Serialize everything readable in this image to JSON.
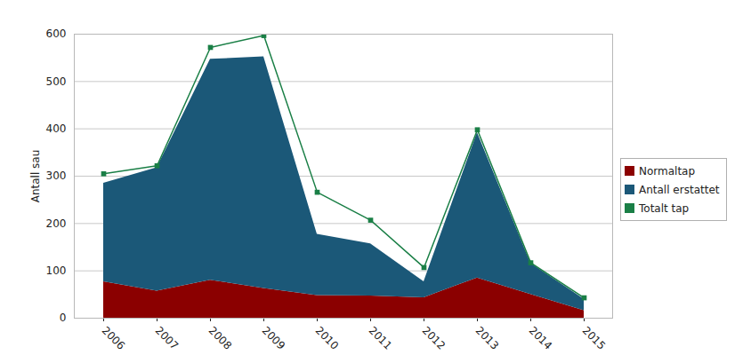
{
  "chart_data": {
    "type": "area",
    "stacked": true,
    "categories": [
      "2006",
      "2007",
      "2008",
      "2009",
      "2010",
      "2011",
      "2012",
      "2013",
      "2014",
      "2015"
    ],
    "ylabel": "Antall sau",
    "ylim": [
      0,
      600
    ],
    "yticks": [
      0,
      100,
      200,
      300,
      400,
      500,
      600
    ],
    "grid": true,
    "legend": "right",
    "series": [
      {
        "name": "Normaltap",
        "color": "#8b0000",
        "type": "area",
        "values": [
          77,
          57,
          80,
          63,
          48,
          47,
          43,
          85,
          50,
          16
        ]
      },
      {
        "name": "Antall erstattet",
        "color": "#1b5878",
        "type": "area",
        "values": [
          208,
          261,
          467,
          489,
          129,
          110,
          34,
          307,
          66,
          24
        ]
      },
      {
        "name": "Totalt tap",
        "color": "#1a7f46",
        "type": "line",
        "marker": "square",
        "values": [
          305,
          322,
          572,
          597,
          266,
          207,
          107,
          398,
          117,
          43
        ]
      }
    ]
  }
}
